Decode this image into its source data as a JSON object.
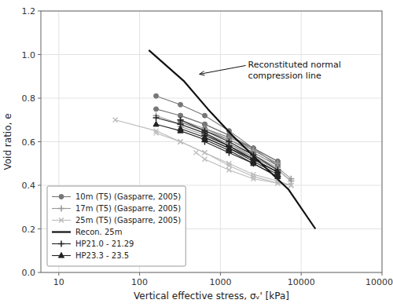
{
  "chart_data": {
    "type": "line",
    "title": "",
    "xlabel": "Vertical effective stress, σᵥ' [kPa]",
    "ylabel": "Void ratio, e",
    "log": "x",
    "grid": true,
    "legend": "lower left",
    "xlim": [
      6,
      100000
    ],
    "xticks": [
      10,
      100,
      1000,
      10000,
      100000
    ],
    "ylim": [
      0,
      1.2
    ],
    "yticks": [
      {
        "value": 0,
        "label": "0.0"
      },
      0.2,
      0.4,
      0.6,
      0.8,
      {
        "value": 1.0,
        "label": "1.0"
      },
      1.2
    ],
    "series": [
      {
        "name": "10m (T5) (Gasparre, 2005)",
        "color": "#777777",
        "marker": "circle",
        "x": [
          160,
          320,
          640,
          1280,
          2560,
          5120
        ],
        "values": [
          0.81,
          0.77,
          0.72,
          0.65,
          0.57,
          0.49
        ]
      },
      {
        "color": "#777777",
        "marker": "circle",
        "x": [
          160,
          320,
          640,
          1280,
          2560,
          5120
        ],
        "values": [
          0.75,
          0.72,
          0.68,
          0.63,
          0.56,
          0.5
        ]
      },
      {
        "color": "#777777",
        "marker": "circle",
        "x": [
          320,
          640,
          1280,
          2560,
          5120
        ],
        "values": [
          0.72,
          0.68,
          0.63,
          0.57,
          0.51
        ]
      },
      {
        "color": "#777777",
        "marker": "circle",
        "x": [
          320,
          640,
          1280,
          2560,
          5120
        ],
        "values": [
          0.69,
          0.65,
          0.61,
          0.55,
          0.49
        ]
      },
      {
        "color": "#777777",
        "marker": "circle",
        "x": [
          640,
          1280,
          2560,
          5120
        ],
        "values": [
          0.66,
          0.62,
          0.57,
          0.51
        ]
      },
      {
        "name": "17m (T5) (Gasparre, 2005)",
        "color": "#999999",
        "marker": "plus",
        "x": [
          160,
          320,
          640,
          1280,
          2560,
          5120
        ],
        "values": [
          0.72,
          0.68,
          0.64,
          0.59,
          0.53,
          0.47
        ]
      },
      {
        "color": "#999999",
        "marker": "plus",
        "x": [
          320,
          640,
          1280,
          2560,
          5120
        ],
        "values": [
          0.7,
          0.66,
          0.61,
          0.56,
          0.5
        ]
      },
      {
        "color": "#999999",
        "marker": "plus",
        "x": [
          320,
          640,
          1280,
          2560,
          5120,
          7500
        ],
        "values": [
          0.67,
          0.63,
          0.58,
          0.53,
          0.47,
          0.42
        ]
      },
      {
        "color": "#999999",
        "marker": "plus",
        "x": [
          640,
          1280,
          2560,
          5120,
          7500
        ],
        "values": [
          0.64,
          0.59,
          0.54,
          0.48,
          0.43
        ]
      },
      {
        "name": "25m (T5) (Gasparre, 2005)",
        "color": "#bbbbbb",
        "marker": "cross",
        "x": [
          50,
          160,
          320,
          640,
          1280,
          2560,
          5120,
          7500
        ],
        "values": [
          0.7,
          0.65,
          0.6,
          0.55,
          0.49,
          0.44,
          0.41,
          0.4
        ]
      },
      {
        "color": "#bbbbbb",
        "marker": "cross",
        "x": [
          500,
          640,
          1280,
          2560,
          5120,
          7500
        ],
        "values": [
          0.55,
          0.52,
          0.47,
          0.43,
          0.41,
          0.4
        ]
      },
      {
        "color": "#bbbbbb",
        "marker": "cross",
        "x": [
          160,
          320,
          640,
          1280,
          2560,
          5120,
          7500
        ],
        "values": [
          0.64,
          0.6,
          0.55,
          0.5,
          0.45,
          0.42,
          0.4
        ]
      },
      {
        "name": "Recon. 25m",
        "color": "#111111",
        "marker": "none",
        "line_style": "thick",
        "x": [
          130,
          350,
          700,
          1400,
          3000,
          7000,
          15000
        ],
        "values": [
          1.02,
          0.88,
          0.75,
          0.63,
          0.51,
          0.38,
          0.2
        ]
      },
      {
        "name": "HP21.0 - 21.29",
        "color": "#222222",
        "marker": "plus",
        "x": [
          160,
          320,
          640,
          1280,
          2560,
          5120
        ],
        "values": [
          0.71,
          0.68,
          0.64,
          0.58,
          0.52,
          0.46
        ]
      },
      {
        "color": "#222222",
        "marker": "plus",
        "x": [
          320,
          640,
          1280,
          2560,
          5120
        ],
        "values": [
          0.7,
          0.65,
          0.6,
          0.54,
          0.47
        ]
      },
      {
        "color": "#222222",
        "marker": "plus",
        "x": [
          640,
          1280,
          2560,
          5120
        ],
        "values": [
          0.63,
          0.58,
          0.52,
          0.46
        ]
      },
      {
        "color": "#222222",
        "marker": "plus",
        "x": [
          640,
          1280,
          2560,
          5120
        ],
        "values": [
          0.6,
          0.55,
          0.5,
          0.44
        ]
      },
      {
        "name": "HP23.3 - 23.5",
        "color": "#222222",
        "marker": "triangle",
        "x": [
          160,
          320,
          640,
          1280,
          2560,
          5120
        ],
        "values": [
          0.68,
          0.65,
          0.61,
          0.56,
          0.5,
          0.44
        ]
      },
      {
        "color": "#222222",
        "marker": "triangle",
        "x": [
          320,
          640,
          1280,
          2560,
          5120
        ],
        "values": [
          0.66,
          0.62,
          0.57,
          0.52,
          0.46
        ]
      },
      {
        "color": "#222222",
        "marker": "triangle",
        "x": [
          640,
          1280,
          2560,
          5120
        ],
        "values": [
          0.62,
          0.57,
          0.51,
          0.45
        ]
      }
    ],
    "annotations": [
      {
        "text": "Reconstituted normal\ncompression line",
        "x": 2200,
        "y": 0.975,
        "arrow_x": 550,
        "arrow_y": 0.91
      }
    ]
  }
}
